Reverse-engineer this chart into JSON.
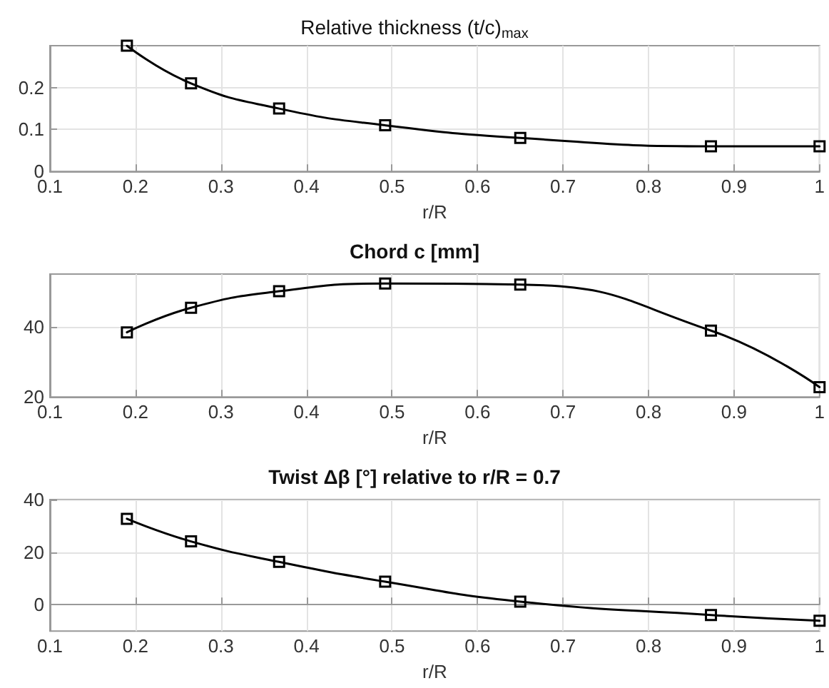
{
  "chart_data": [
    {
      "type": "line",
      "title": "Relative thickness (t/c)$_{max}$",
      "xlabel": "r/R",
      "x": [
        0.19,
        0.265,
        0.368,
        0.492,
        0.65,
        0.873,
        1.0
      ],
      "xlim": [
        0.1,
        1
      ],
      "xticks": [
        0.1,
        0.2,
        0.3,
        0.4,
        0.5,
        0.6,
        0.7,
        0.8,
        0.9,
        1
      ],
      "ylim": [
        0,
        0.3
      ],
      "yticks": [
        0,
        0.1,
        0.2
      ],
      "grid": true,
      "marker": "square",
      "line_style": "solid",
      "series": [
        {
          "color": "#000000",
          "values": [
            0.3,
            0.21,
            0.15,
            0.11,
            0.08,
            0.06,
            0.06
          ]
        }
      ]
    },
    {
      "type": "line",
      "title": "Chord c [mm]",
      "xlabel": "r/R",
      "x": [
        0.19,
        0.265,
        0.368,
        0.492,
        0.65,
        0.873,
        1.0
      ],
      "xlim": [
        0.1,
        1
      ],
      "xticks": [
        0.1,
        0.2,
        0.3,
        0.4,
        0.5,
        0.6,
        0.7,
        0.8,
        0.9,
        1
      ],
      "ylim": [
        20,
        55
      ],
      "yticks": [
        20,
        40
      ],
      "grid": true,
      "marker": "square",
      "line_style": "solid",
      "series": [
        {
          "color": "#000000",
          "values": [
            38.4,
            45.4,
            50.1,
            52.3,
            52,
            38.9,
            22.8
          ]
        }
      ]
    },
    {
      "type": "line",
      "title": "Twist Δβ [°] relative to r/R = 0.7",
      "xlabel": "r/R",
      "x": [
        0.19,
        0.265,
        0.368,
        0.492,
        0.65,
        0.873,
        1.0
      ],
      "xlim": [
        0.1,
        1
      ],
      "xticks": [
        0.1,
        0.2,
        0.3,
        0.4,
        0.5,
        0.6,
        0.7,
        0.8,
        0.9,
        1
      ],
      "ylim": [
        -10,
        40
      ],
      "yticks": [
        0,
        20,
        40
      ],
      "grid": true,
      "marker": "square",
      "line_style": "solid",
      "series": [
        {
          "color": "#000000",
          "values": [
            32.7,
            24.1,
            16.3,
            8.8,
            1.2,
            -3.9,
            -6.1
          ]
        }
      ]
    }
  ]
}
